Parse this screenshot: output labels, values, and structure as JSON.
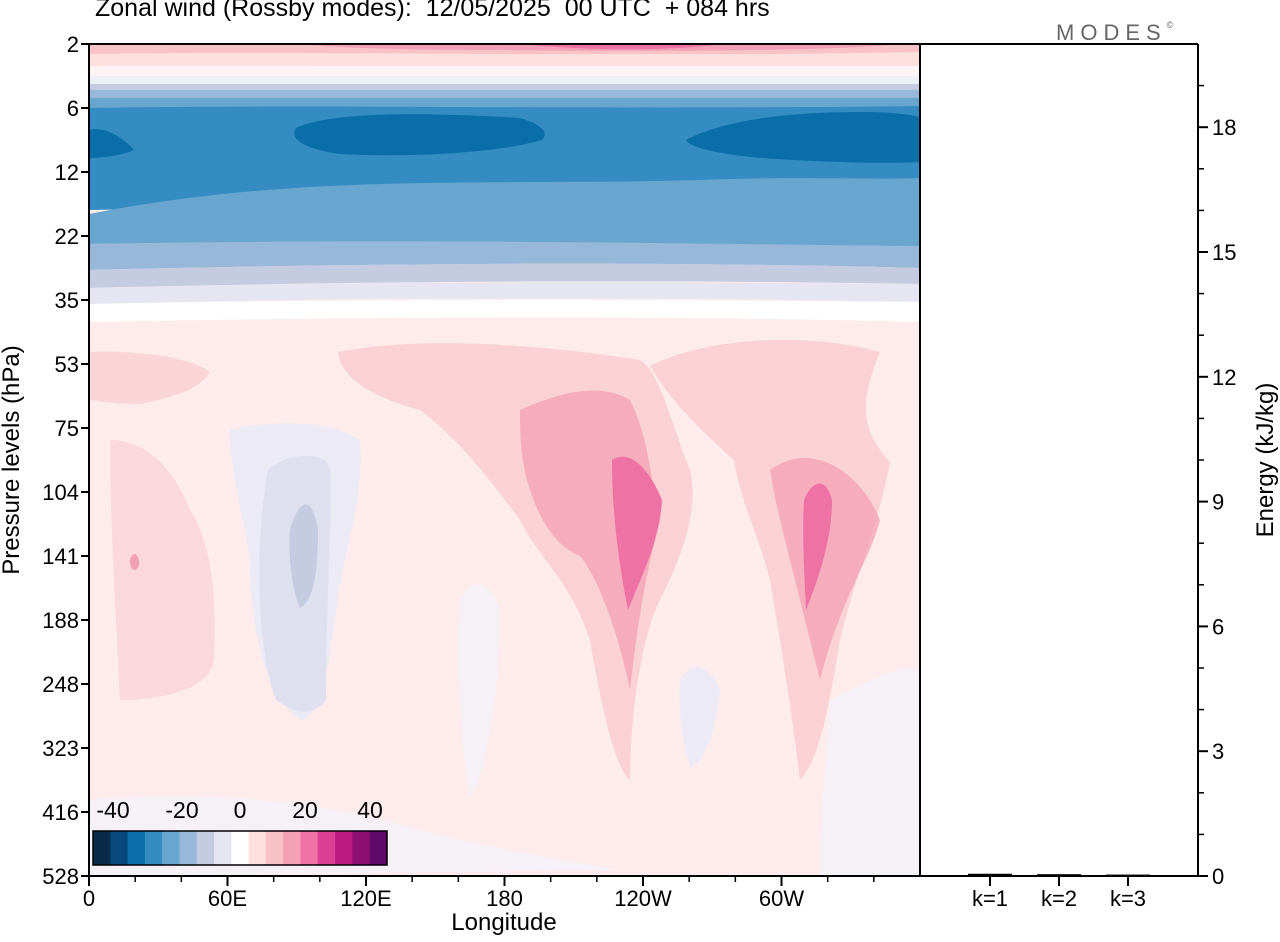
{
  "chart_data": [
    {
      "type": "heatmap",
      "title": "Zonal wind (Rossby modes):  12/05/2025  00 UTC  + 084 hrs",
      "xlabel": "Longitude",
      "ylabel": "Pressure levels (hPa)",
      "x_ticks": [
        "0",
        "60E",
        "120E",
        "180",
        "120W",
        "60W"
      ],
      "y_ticks": [
        "2",
        "6",
        "12",
        "22",
        "35",
        "53",
        "75",
        "104",
        "141",
        "188",
        "248",
        "323",
        "416",
        "528"
      ],
      "y_scale": "log",
      "colorbar": {
        "labels": [
          "-40",
          "-20",
          "0",
          "20",
          "40"
        ],
        "colors": [
          "#0b2a4a",
          "#08487a",
          "#0a6ea8",
          "#348cc2",
          "#68a6cf",
          "#98b8da",
          "#c5cce2",
          "#e6e6f2",
          "#ffffff",
          "#fde0de",
          "#f8c2c7",
          "#f3a0b6",
          "#ee72a4",
          "#db3f93",
          "#bc1a82",
          "#8f0e73",
          "#5e0a68"
        ]
      }
    },
    {
      "type": "bar",
      "categories": [
        "k=1",
        "k=2",
        "k=3"
      ],
      "values": [
        0.03,
        0.02,
        0.01
      ],
      "ylabel": "Energy (kJ/kg)",
      "y_ticks": [
        "0",
        "3",
        "6",
        "9",
        "12",
        "15",
        "18"
      ],
      "ylim": [
        0,
        20
      ]
    }
  ],
  "brand": {
    "name": "MODES",
    "mark": "©"
  }
}
